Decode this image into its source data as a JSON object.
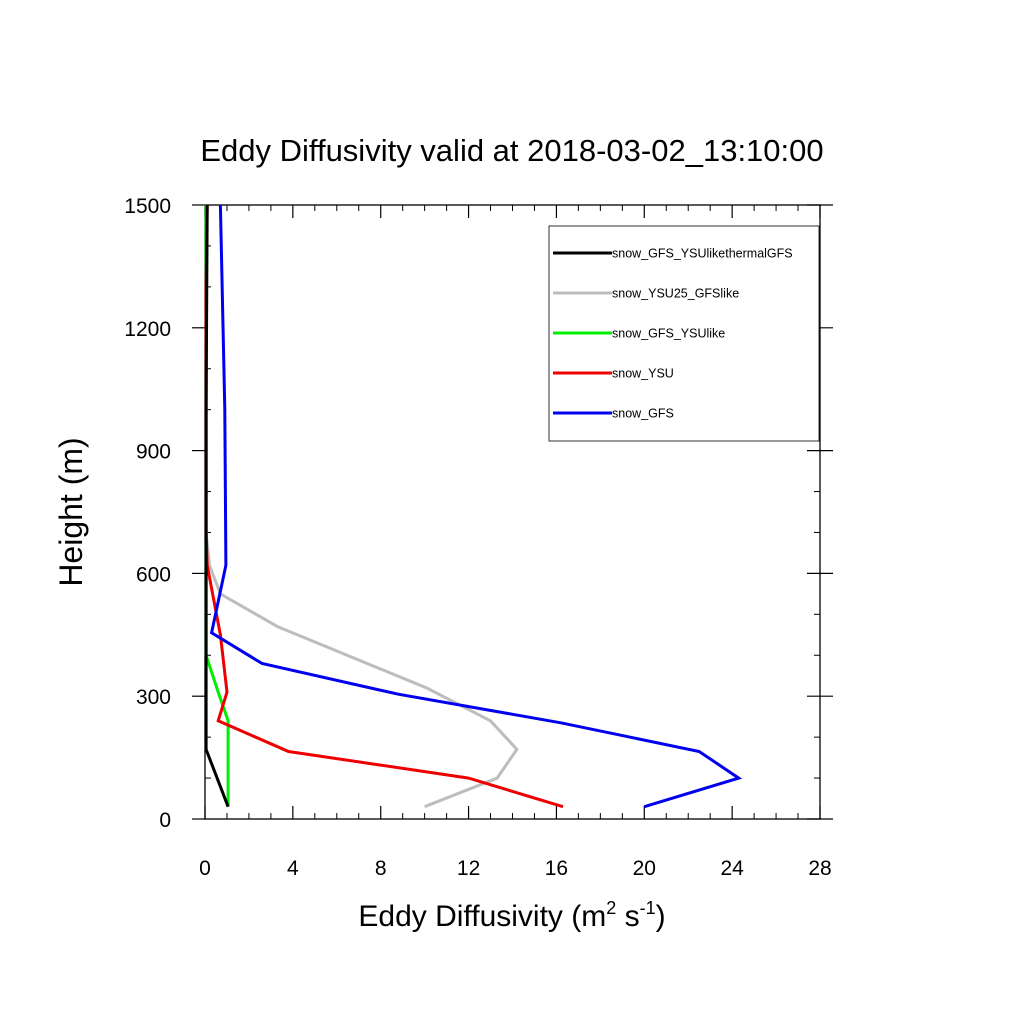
{
  "chart_data": {
    "type": "line",
    "title": "Eddy Diffusivity valid at 2018-03-02_13:10:00",
    "ylabel": "Height (m)",
    "xlabel": {
      "base": "Eddy Diffusivity (m",
      "sup1": "2",
      "mid": " s",
      "sup2": "-1",
      "end": ")"
    },
    "xlim": [
      0,
      28
    ],
    "ylim": [
      0,
      1500
    ],
    "xticks": [
      0,
      4,
      8,
      12,
      16,
      20,
      24,
      28
    ],
    "yticks": [
      0,
      300,
      600,
      900,
      1200,
      1500
    ],
    "x_minor_step": 1,
    "y_minor_step": 100,
    "grid": false,
    "legend_position": "top-right",
    "series": [
      {
        "name": "snow_GFS_YSUlikethermalGFS",
        "color": "#000000",
        "points": [
          [
            1.05,
            30
          ],
          [
            0.05,
            170
          ],
          [
            0.05,
            600
          ],
          [
            0.05,
            1000
          ],
          [
            0.1,
            1500
          ]
        ]
      },
      {
        "name": "snow_YSU25_GFSlike",
        "color": "#bdbdbd",
        "points": [
          [
            10.0,
            30
          ],
          [
            13.3,
            100
          ],
          [
            14.2,
            170
          ],
          [
            13.0,
            240
          ],
          [
            10.1,
            320
          ],
          [
            3.3,
            470
          ],
          [
            0.7,
            550
          ],
          [
            0.2,
            620
          ],
          [
            0.05,
            700
          ],
          [
            0.05,
            1500
          ]
        ]
      },
      {
        "name": "snow_GFS_YSUlike",
        "color": "#00ee00",
        "points": [
          [
            1.05,
            30
          ],
          [
            1.05,
            100
          ],
          [
            1.05,
            240
          ],
          [
            0.6,
            310
          ],
          [
            0.05,
            400
          ],
          [
            0.05,
            1500
          ]
        ]
      },
      {
        "name": "snow_YSU",
        "color": "#ee0000",
        "points": [
          [
            16.3,
            30
          ],
          [
            12.0,
            100
          ],
          [
            3.8,
            165
          ],
          [
            0.6,
            240
          ],
          [
            1.0,
            310
          ],
          [
            0.7,
            450
          ],
          [
            0.1,
            620
          ],
          [
            0.05,
            700
          ],
          [
            0.05,
            1300
          ],
          [
            0.1,
            1500
          ]
        ]
      },
      {
        "name": "snow_GFS",
        "color": "#0000ee",
        "points": [
          [
            20.0,
            30
          ],
          [
            24.3,
            100
          ],
          [
            22.5,
            165
          ],
          [
            16.2,
            235
          ],
          [
            8.8,
            305
          ],
          [
            2.6,
            380
          ],
          [
            0.3,
            455
          ],
          [
            0.95,
            620
          ],
          [
            0.9,
            1000
          ],
          [
            0.7,
            1500
          ]
        ]
      }
    ]
  }
}
